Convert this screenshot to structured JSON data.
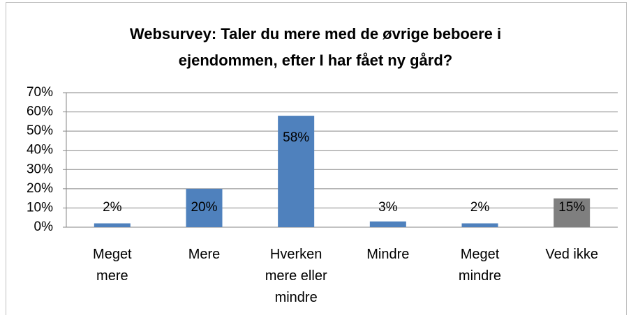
{
  "chart_data": {
    "type": "bar",
    "title": "Websurvey: Taler du mere med de øvrige beboere i ejendommen, efter I har fået ny gård?",
    "categories": [
      "Meget mere",
      "Mere",
      "Hverken mere eller mindre",
      "Mindre",
      "Meget mindre",
      "Ved ikke"
    ],
    "values": [
      2,
      20,
      58,
      3,
      2,
      15
    ],
    "value_labels": [
      "2%",
      "20%",
      "58%",
      "3%",
      "2%",
      "15%"
    ],
    "colors": [
      "#4f81bd",
      "#4f81bd",
      "#4f81bd",
      "#4f81bd",
      "#4f81bd",
      "#7f7f7f"
    ],
    "ylim": [
      0,
      70
    ],
    "yticks": [
      {
        "value": 0,
        "label": "0%"
      },
      {
        "value": 10,
        "label": "10%"
      },
      {
        "value": 20,
        "label": "20%"
      },
      {
        "value": 30,
        "label": "30%"
      },
      {
        "value": 40,
        "label": "40%"
      },
      {
        "value": 50,
        "label": "50%"
      },
      {
        "value": 60,
        "label": "60%"
      },
      {
        "value": 70,
        "label": "70%"
      }
    ],
    "grid": true
  }
}
